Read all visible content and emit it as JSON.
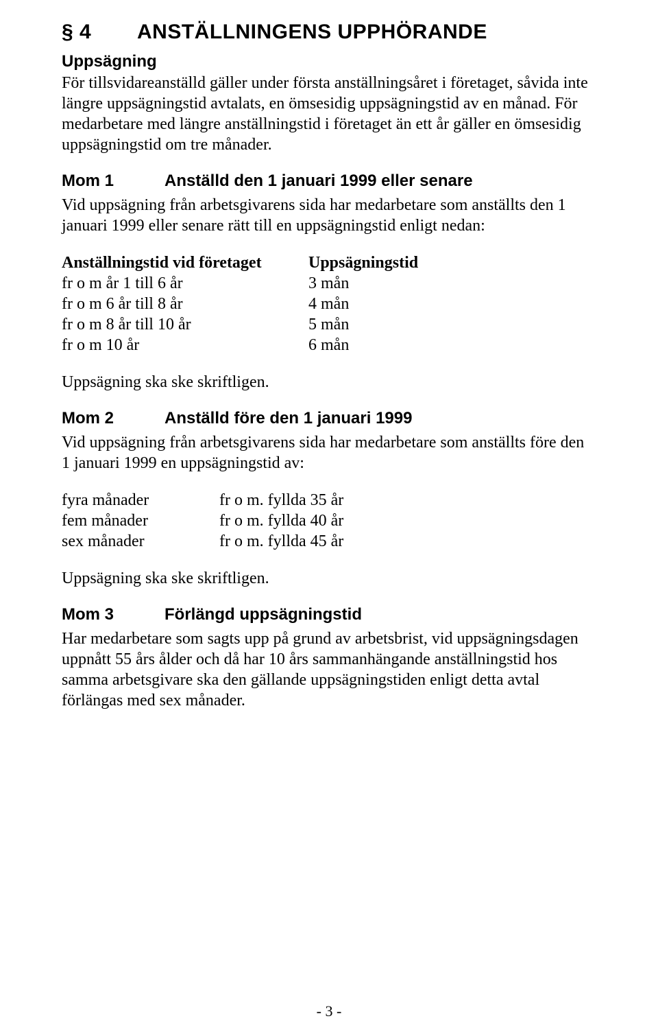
{
  "colors": {
    "background": "#ffffff",
    "text": "#000000"
  },
  "typography": {
    "heading_font": "Arial",
    "body_font": "Times New Roman",
    "h1_size_pt": 22,
    "subheading_size_pt": 18,
    "body_size_pt": 18,
    "line_height": 1.25
  },
  "section": {
    "number": "§ 4",
    "title": "ANSTÄLLNINGENS UPPHÖRANDE"
  },
  "uppsagning": {
    "heading": "Uppsägning",
    "para": "För tillsvidareanställd gäller under första anställningsåret i företaget, såvida inte längre uppsägningstid avtalats, en ömsesidig uppsägningstid av en månad. För medarbetare med längre anställningstid i företaget än ett år gäller en ömsesidig uppsägningstid om tre månader."
  },
  "mom1": {
    "label": "Mom 1",
    "title": "Anställd den 1 januari 1999 eller senare",
    "para": "Vid uppsägning från arbetsgivarens sida har medarbetare som anställts den 1 januari 1999 eller senare rätt till en uppsägningstid enligt nedan:",
    "table": {
      "col1_header": "Anställningstid vid företaget",
      "col2_header": "Uppsägningstid",
      "rows": [
        {
          "c1": "fr o m år 1 till 6 år",
          "c2": "3 mån"
        },
        {
          "c1": "fr o m 6 år till 8 år",
          "c2": "4 mån"
        },
        {
          "c1": "fr o m 8 år till 10 år",
          "c2": "5 mån"
        },
        {
          "c1": "fr o m 10 år",
          "c2": "6 mån"
        }
      ]
    },
    "note": "Uppsägning ska ske skriftligen."
  },
  "mom2": {
    "label": "Mom 2",
    "title": "Anställd före den 1 januari 1999",
    "para": "Vid uppsägning från arbetsgivarens sida har medarbetare som anställts före den 1 januari 1999 en uppsägningstid av:",
    "table": {
      "rows": [
        {
          "c1": "fyra månader",
          "c2": "fr o m. fyllda 35 år"
        },
        {
          "c1": "fem månader",
          "c2": "fr o m. fyllda 40 år"
        },
        {
          "c1": "sex månader",
          "c2": "fr o m. fyllda 45 år"
        }
      ]
    },
    "note": "Uppsägning ska ske skriftligen."
  },
  "mom3": {
    "label": "Mom 3",
    "title": "Förlängd uppsägningstid",
    "para": "Har medarbetare som sagts upp på grund av arbetsbrist, vid uppsägningsdagen uppnått 55 års ålder och då har 10 års sammanhängande anställningstid hos samma arbetsgivare ska den gällande uppsägningstiden enligt detta avtal förlängas med sex månader."
  },
  "page_number": "- 3 -"
}
